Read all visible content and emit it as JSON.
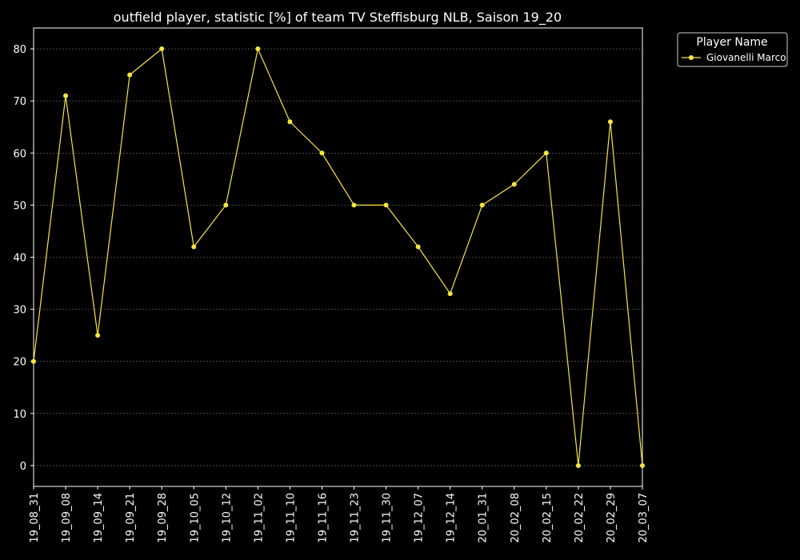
{
  "chart_data": {
    "type": "line",
    "title": "outfield player, statistic [%] of team TV Steffisburg NLB, Saison 19_20",
    "xlabel": "",
    "ylabel": "",
    "categories": [
      "19_08_31",
      "19_09_08",
      "19_09_14",
      "19_09_21",
      "19_09_28",
      "19_10_05",
      "19_10_12",
      "19_11_02",
      "19_11_10",
      "19_11_16",
      "19_11_23",
      "19_11_30",
      "19_12_07",
      "19_12_14",
      "20_01_31",
      "20_02_08",
      "20_02_15",
      "20_02_22",
      "20_02_29",
      "20_03_07"
    ],
    "series": [
      {
        "name": "Giovanelli Marco",
        "color": "#f5e642",
        "values": [
          20,
          71,
          25,
          75,
          80,
          42,
          50,
          80,
          66,
          60,
          50,
          50,
          42,
          33,
          50,
          54,
          60,
          0,
          66,
          0
        ]
      }
    ],
    "ylim": [
      -4,
      84
    ],
    "yticks": [
      0,
      10,
      20,
      30,
      40,
      50,
      60,
      70,
      80
    ],
    "grid": true,
    "legend": {
      "title": "Player Name",
      "placement": "top-right-outside"
    },
    "background": "#000000",
    "text_color": "#ffffff"
  }
}
